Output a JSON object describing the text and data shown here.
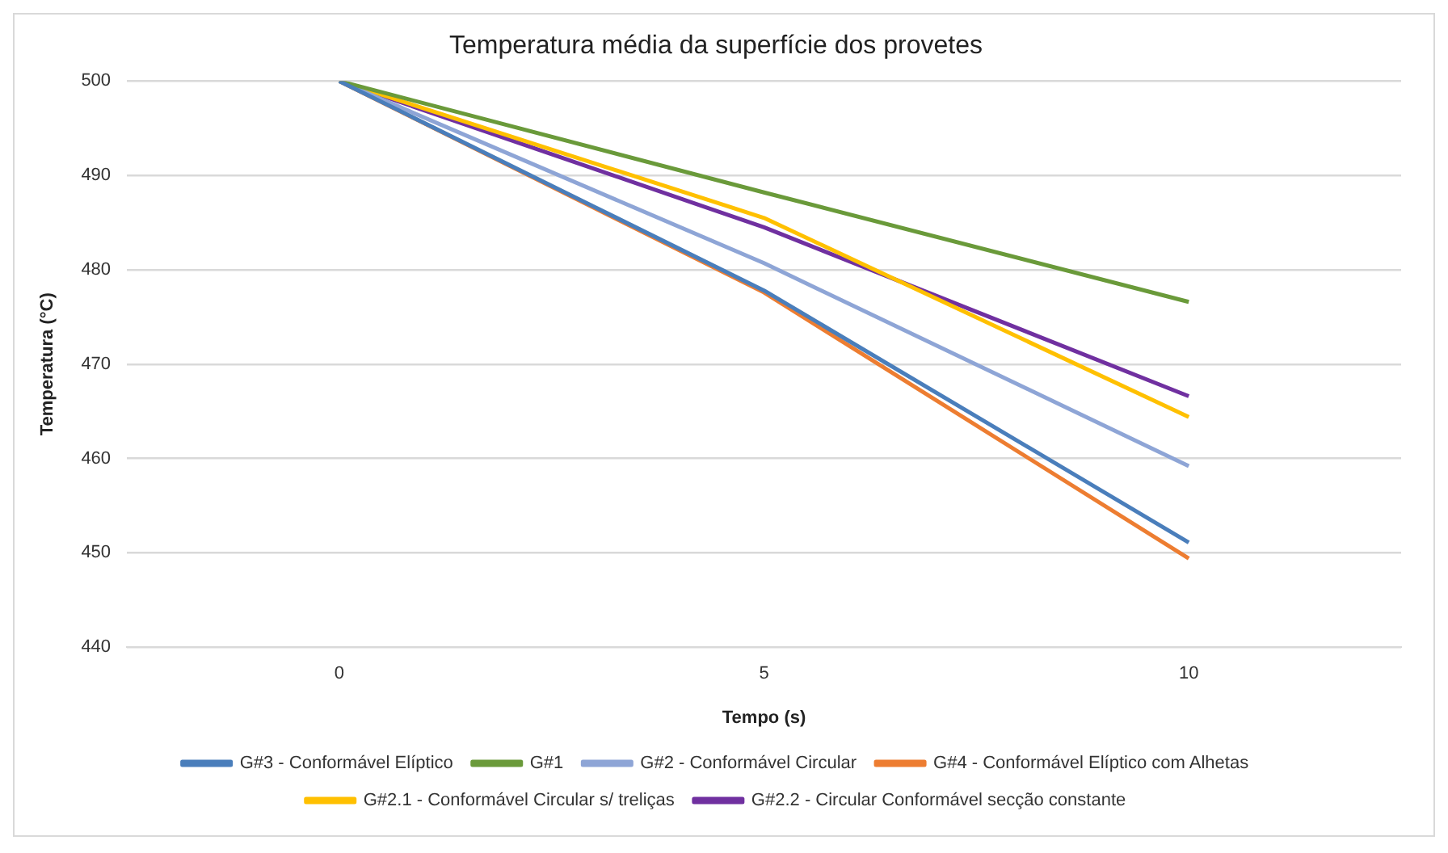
{
  "chart_data": {
    "type": "line",
    "title": "Temperatura média da superfície dos provetes",
    "xlabel": "Tempo (s)",
    "ylabel": "Temperatura (°C)",
    "categories": [
      "0",
      "5",
      "10"
    ],
    "series": [
      {
        "name": "G#3 - Conformável Elíptico",
        "color": "#4a7ebb",
        "values": [
          500,
          477.8,
          451.1
        ]
      },
      {
        "name": "G#1",
        "color": "#6a9a3a",
        "values": [
          500,
          488.2,
          476.6
        ]
      },
      {
        "name": "G#2 - Conformável Circular",
        "color": "#8ea5d6",
        "values": [
          500,
          480.7,
          459.2
        ]
      },
      {
        "name": "G#4 - Conformável Elíptico com Alhetas",
        "color": "#ed7d31",
        "values": [
          500,
          477.6,
          449.4
        ]
      },
      {
        "name": "G#2.1 - Conformável Circular s/ treliças",
        "color": "#ffc000",
        "values": [
          500,
          485.5,
          464.4
        ]
      },
      {
        "name": "G#2.2 - Circular Conformável secção constante",
        "color": "#7030a0",
        "values": [
          500,
          484.5,
          466.6
        ]
      }
    ],
    "ylim": [
      440,
      500
    ],
    "yticks": [
      440,
      450,
      460,
      470,
      480,
      490,
      500
    ],
    "grid": "y",
    "legend": "bottom",
    "marker": "none",
    "line_style": "solid"
  }
}
